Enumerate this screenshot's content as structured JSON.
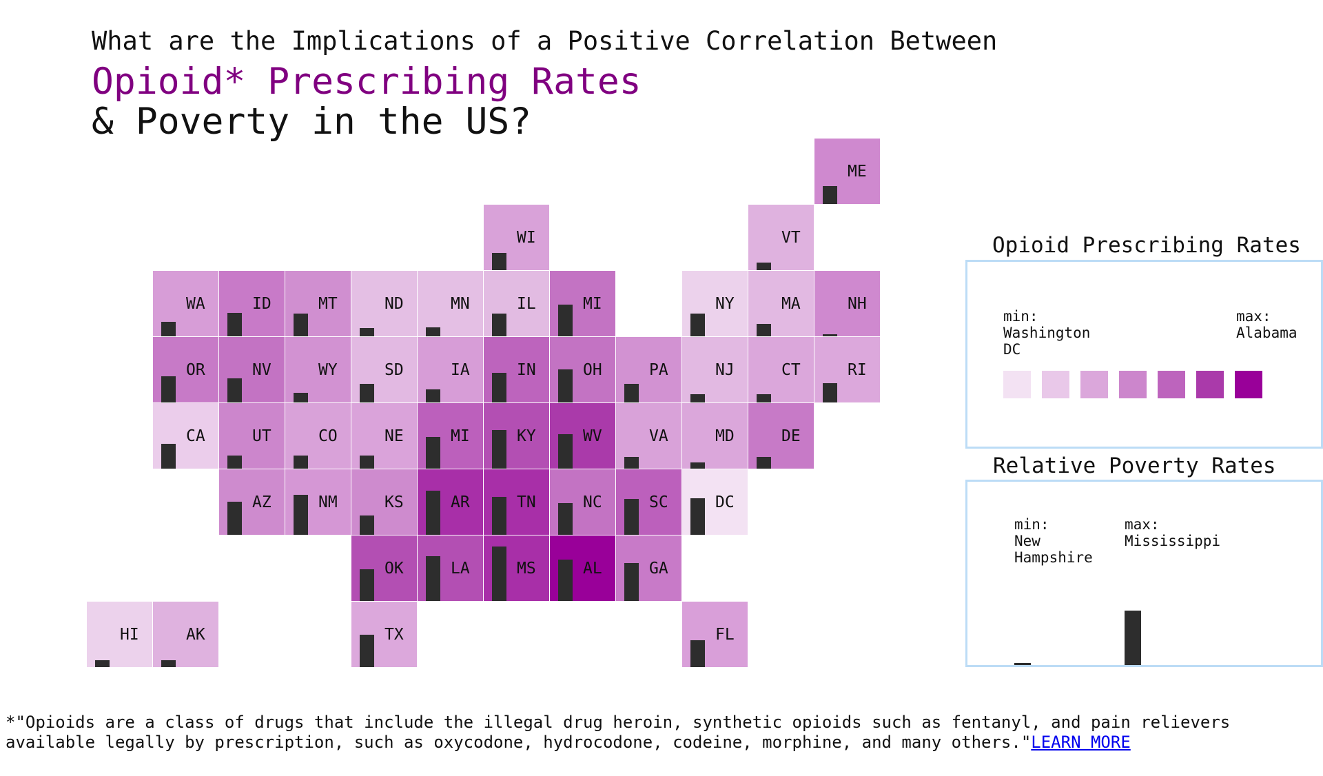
{
  "header": {
    "line1": "What are the Implications of a Positive Correlation Between",
    "line2": "Opioid* Prescribing Rates",
    "line3": "& Poverty in the US?"
  },
  "map": {
    "bar_color": "#2d2d2d",
    "states": [
      {
        "abbr": "ME",
        "col": 11,
        "row": 0,
        "color": "#cf89cf",
        "poverty": 0.3
      },
      {
        "abbr": "WI",
        "col": 6,
        "row": 1,
        "color": "#d9a2d9",
        "poverty": 0.28
      },
      {
        "abbr": "VT",
        "col": 10,
        "row": 1,
        "color": "#dfb2df",
        "poverty": 0.12
      },
      {
        "abbr": "WA",
        "col": 1,
        "row": 2,
        "color": "#d79dd7",
        "poverty": 0.24
      },
      {
        "abbr": "ID",
        "col": 2,
        "row": 2,
        "color": "#c87ac8",
        "poverty": 0.39
      },
      {
        "abbr": "MT",
        "col": 3,
        "row": 2,
        "color": "#d08fd0",
        "poverty": 0.37
      },
      {
        "abbr": "ND",
        "col": 4,
        "row": 2,
        "color": "#e4bfe4",
        "poverty": 0.14
      },
      {
        "abbr": "MN",
        "col": 5,
        "row": 2,
        "color": "#e4bfe4",
        "poverty": 0.15
      },
      {
        "abbr": "IL",
        "col": 6,
        "row": 2,
        "color": "#e2bbe2",
        "poverty": 0.38
      },
      {
        "abbr": "MI",
        "col": 7,
        "row": 2,
        "color": "#c373c3",
        "poverty": 0.52
      },
      {
        "abbr": "NY",
        "col": 9,
        "row": 2,
        "color": "#ecd2ec",
        "poverty": 0.38
      },
      {
        "abbr": "MA",
        "col": 10,
        "row": 2,
        "color": "#e2b9e2",
        "poverty": 0.2
      },
      {
        "abbr": "NH",
        "col": 11,
        "row": 2,
        "color": "#cf89cf",
        "poverty": 0.03
      },
      {
        "abbr": "OR",
        "col": 1,
        "row": 3,
        "color": "#c77ac7",
        "poverty": 0.43
      },
      {
        "abbr": "NV",
        "col": 2,
        "row": 3,
        "color": "#c373c3",
        "poverty": 0.4
      },
      {
        "abbr": "WY",
        "col": 3,
        "row": 3,
        "color": "#d292d2",
        "poverty": 0.16
      },
      {
        "abbr": "SD",
        "col": 4,
        "row": 3,
        "color": "#e2b9e2",
        "poverty": 0.31
      },
      {
        "abbr": "IA",
        "col": 5,
        "row": 3,
        "color": "#d79dd7",
        "poverty": 0.22
      },
      {
        "abbr": "IN",
        "col": 6,
        "row": 3,
        "color": "#bd64bd",
        "poverty": 0.49
      },
      {
        "abbr": "OH",
        "col": 7,
        "row": 3,
        "color": "#c373c3",
        "poverty": 0.55
      },
      {
        "abbr": "PA",
        "col": 8,
        "row": 3,
        "color": "#d292d2",
        "poverty": 0.31
      },
      {
        "abbr": "NJ",
        "col": 9,
        "row": 3,
        "color": "#e2b9e2",
        "poverty": 0.14
      },
      {
        "abbr": "CT",
        "col": 10,
        "row": 3,
        "color": "#dba7db",
        "poverty": 0.14
      },
      {
        "abbr": "RI",
        "col": 11,
        "row": 3,
        "color": "#dca8dc",
        "poverty": 0.32
      },
      {
        "abbr": "CA",
        "col": 1,
        "row": 4,
        "color": "#ebcdeb",
        "poverty": 0.41
      },
      {
        "abbr": "UT",
        "col": 2,
        "row": 4,
        "color": "#cc86cc",
        "poverty": 0.22
      },
      {
        "abbr": "CO",
        "col": 3,
        "row": 4,
        "color": "#d9a2d9",
        "poverty": 0.22
      },
      {
        "abbr": "NE",
        "col": 4,
        "row": 4,
        "color": "#daa3da",
        "poverty": 0.22
      },
      {
        "abbr": "MI",
        "col": 5,
        "row": 4,
        "color": "#bc60bc",
        "poverty": 0.52
      },
      {
        "abbr": "KY",
        "col": 6,
        "row": 4,
        "color": "#b34fb3",
        "poverty": 0.64
      },
      {
        "abbr": "WV",
        "col": 7,
        "row": 4,
        "color": "#aa3aaa",
        "poverty": 0.57
      },
      {
        "abbr": "VA",
        "col": 8,
        "row": 4,
        "color": "#d9a2d9",
        "poverty": 0.19
      },
      {
        "abbr": "MD",
        "col": 9,
        "row": 4,
        "color": "#dba7db",
        "poverty": 0.1
      },
      {
        "abbr": "DE",
        "col": 10,
        "row": 4,
        "color": "#c77ac7",
        "poverty": 0.19
      },
      {
        "abbr": "AZ",
        "col": 2,
        "row": 5,
        "color": "#ce8bce",
        "poverty": 0.54
      },
      {
        "abbr": "NM",
        "col": 3,
        "row": 5,
        "color": "#d597d5",
        "poverty": 0.66
      },
      {
        "abbr": "KS",
        "col": 4,
        "row": 5,
        "color": "#ce8bce",
        "poverty": 0.32
      },
      {
        "abbr": "AR",
        "col": 5,
        "row": 5,
        "color": "#a82fa8",
        "poverty": 0.73
      },
      {
        "abbr": "TN",
        "col": 6,
        "row": 5,
        "color": "#a82fa8",
        "poverty": 0.63
      },
      {
        "abbr": "NC",
        "col": 7,
        "row": 5,
        "color": "#c373c3",
        "poverty": 0.52
      },
      {
        "abbr": "SC",
        "col": 8,
        "row": 5,
        "color": "#bc60bc",
        "poverty": 0.59
      },
      {
        "abbr": "DC",
        "col": 9,
        "row": 5,
        "color": "#f3e2f3",
        "poverty": 0.6
      },
      {
        "abbr": "OK",
        "col": 5,
        "row": 6,
        "color": "#b34fb3",
        "poverty": 0.52,
        "colOffset": -1
      },
      {
        "abbr": "LA",
        "col": 6,
        "row": 6,
        "color": "#b34fb3",
        "poverty": 0.74,
        "colOffset": -1
      },
      {
        "abbr": "MS",
        "col": 7,
        "row": 6,
        "color": "#a82fa8",
        "poverty": 0.9,
        "colOffset": -1
      },
      {
        "abbr": "AL",
        "col": 8,
        "row": 6,
        "color": "#990099",
        "poverty": 0.68,
        "colOffset": -1
      },
      {
        "abbr": "GA",
        "col": 9,
        "row": 6,
        "color": "#c87ac8",
        "poverty": 0.63,
        "colOffset": -1
      },
      {
        "abbr": "HI",
        "col": 0,
        "row": 7,
        "color": "#ecd2ec",
        "poverty": 0.11
      },
      {
        "abbr": "AK",
        "col": 1,
        "row": 7,
        "color": "#dfb2df",
        "poverty": 0.11
      },
      {
        "abbr": "TX",
        "col": 4,
        "row": 7,
        "color": "#dca8dc",
        "poverty": 0.53
      },
      {
        "abbr": "FL",
        "col": 9,
        "row": 7,
        "color": "#d99fd9",
        "poverty": 0.44
      }
    ]
  },
  "legend_opioid": {
    "title": "Opioid Prescribing Rates",
    "min_label": "min:\nWashington\nDC",
    "max_label": "max:\nAlabama",
    "swatches": [
      "#f3e2f3",
      "#e9c8e9",
      "#dba7db",
      "#cc86cc",
      "#bd64bd",
      "#aa3aaa",
      "#990099"
    ]
  },
  "legend_poverty": {
    "title": "Relative Poverty Rates",
    "min_label": "min:\nNew\nHampshire",
    "max_label": "max:\nMississippi",
    "min_value": 0.03,
    "max_value": 0.9
  },
  "footnote": {
    "text": "*\"Opioids are a class of drugs that include the illegal drug heroin, synthetic opioids such as fentanyl, and pain relievers available legally by prescription, such as oxycodone, hydrocodone, codeine, morphine, and many others.\"",
    "link_text": "LEARN MORE"
  }
}
